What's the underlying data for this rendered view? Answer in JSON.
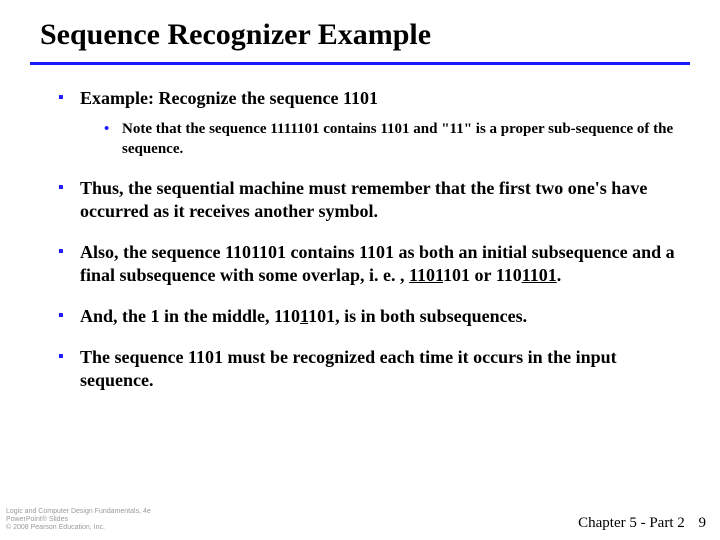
{
  "title": "Sequence Recognizer Example",
  "bullets": [
    {
      "text": "Example:  Recognize the sequence 1101",
      "sub": [
        "Note that the sequence 1111101 contains 1101 and \"11\" is a proper sub-sequence of the sequence."
      ]
    },
    {
      "text": "Thus, the sequential machine must remember that the first two one's have occurred as it receives another symbol."
    },
    {
      "html": "Also, the sequence 1101101 contains 1101 as both an initial subsequence and a final subsequence with some overlap, i. e. , <span class=\"u\">1101</span>101 or 110<span class=\"u\">1101</span>."
    },
    {
      "html": "And, the 1 in the middle, 110<span class=\"u\">1</span>101, is in both subsequences."
    },
    {
      "text": "The sequence 1101 must be recognized each time it occurs in the input sequence."
    }
  ],
  "footer": {
    "left_lines": [
      "Logic and Computer Design Fundamentals, 4e",
      "PowerPoint® Slides",
      "© 2008 Pearson Education, Inc."
    ],
    "chapter": "Chapter 5 - Part 2",
    "page": "9"
  },
  "colors": {
    "accent": "#1a1aff",
    "text": "#000000",
    "footer_gray": "#9a9a9a",
    "background": "#ffffff"
  }
}
